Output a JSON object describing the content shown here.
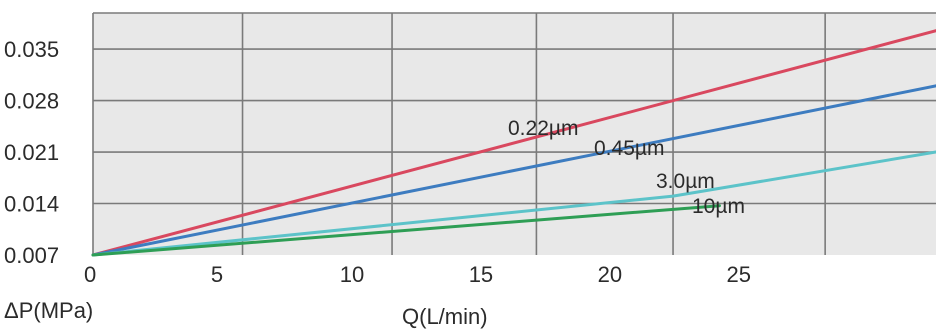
{
  "chart_data": {
    "type": "line",
    "xlabel": "Q(L/min)",
    "ylabel": "ΔP(MPa)",
    "x_ticks": [
      "0",
      "5",
      "10",
      "15",
      "20",
      "25"
    ],
    "y_ticks": [
      "0.007",
      "0.014",
      "0.021",
      "0.028",
      "0.035"
    ],
    "xlim": [
      0,
      32.7
    ],
    "ylim": [
      0.007,
      0.0399
    ],
    "grid": true,
    "legend": "inline labels on lines",
    "colors": {
      "plot_bg": "#e8e8e8",
      "grid": "#7a7a7a",
      "text": "#2b2b2b"
    },
    "series": [
      {
        "name": "0.22µm",
        "color": "#d9485f",
        "x": [
          0,
          32.7
        ],
        "y": [
          0.007,
          0.0375
        ]
      },
      {
        "name": "0.45µm",
        "color": "#3d7cc0",
        "x": [
          0,
          32.7
        ],
        "y": [
          0.007,
          0.03
        ]
      },
      {
        "name": "3.0µm",
        "color": "#5cc3c9",
        "x": [
          0,
          22.5,
          32.7
        ],
        "y": [
          0.007,
          0.015,
          0.021
        ]
      },
      {
        "name": "10µm",
        "color": "#2e9e55",
        "x": [
          0,
          24.3
        ],
        "y": [
          0.007,
          0.0137
        ]
      }
    ]
  }
}
